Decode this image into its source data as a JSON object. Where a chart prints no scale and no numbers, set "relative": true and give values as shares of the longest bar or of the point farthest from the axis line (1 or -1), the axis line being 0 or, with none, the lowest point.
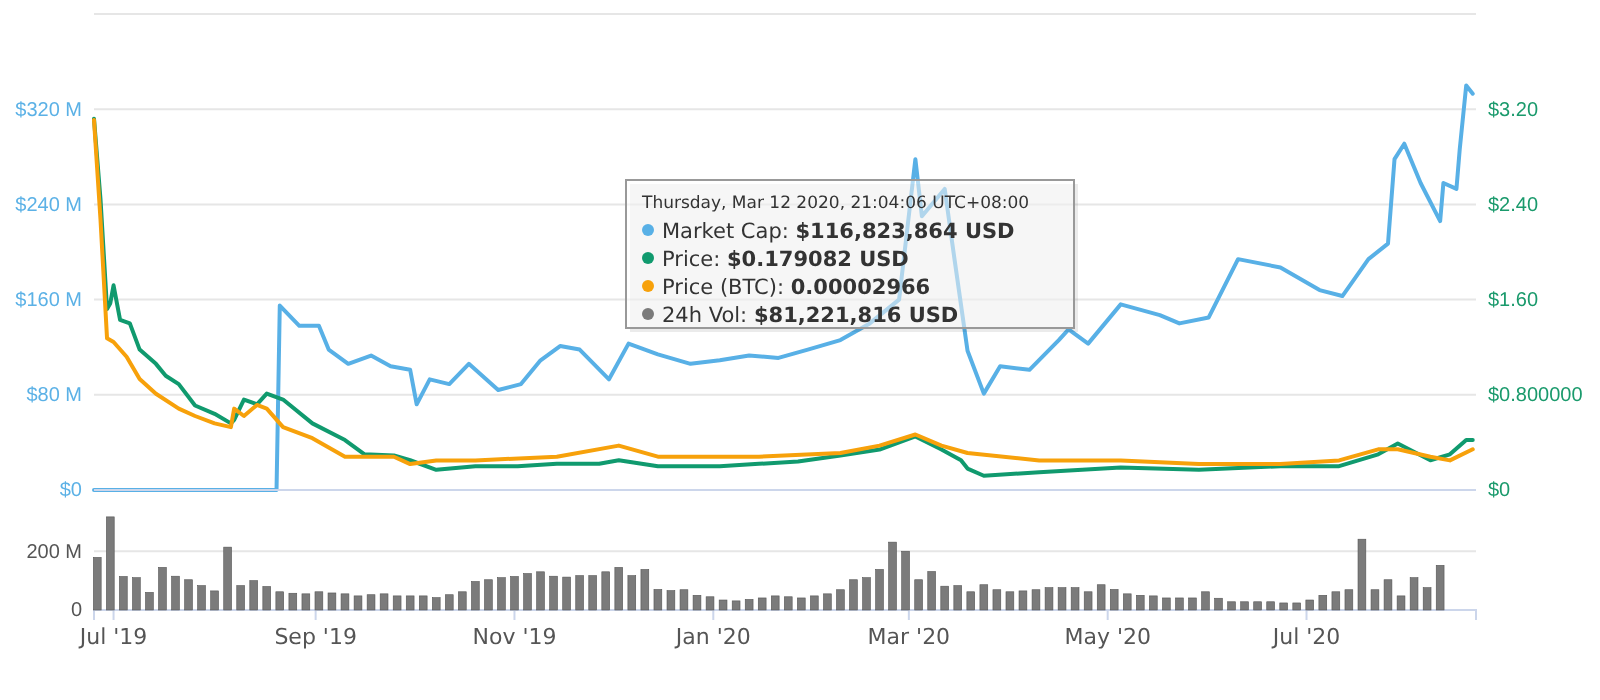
{
  "chart_data": [
    {
      "type": "line",
      "xlim": [
        "2019-06-25",
        "2020-08-22"
      ],
      "ylim": [
        0,
        400
      ],
      "yticks": [
        {
          "value": 0,
          "label": "$0"
        },
        {
          "value": 80,
          "label": "$80 M"
        },
        {
          "value": 160,
          "label": "$160 M"
        },
        {
          "value": 240,
          "label": "$240 M"
        },
        {
          "value": 320,
          "label": "$320 M"
        },
        {
          "value": 400,
          "label": null
        }
      ],
      "y2lim": [
        0,
        4
      ],
      "y2ticks": [
        {
          "value": 0,
          "label": "$0"
        },
        {
          "value": 0.8,
          "label": "$0.800000"
        },
        {
          "value": 1.6,
          "label": "$1.60"
        },
        {
          "value": 2.4,
          "label": "$2.40"
        },
        {
          "value": 3.2,
          "label": "$3.20"
        }
      ],
      "tick_labels": "y",
      "grid": "y",
      "legend": "top",
      "marker": "none",
      "line_style": "solid",
      "annotations": [
        "Thursday, Mar 12 2020, 21:04:06 UTC+08:00",
        "$116,823,864 USD",
        "$0.179082 USD"
      ],
      "series": [
        {
          "name": "Market Cap:",
          "color": "#58b0e6",
          "axis": "y",
          "x": [
            "2019-06-25",
            "2019-08-20",
            "2019-08-21",
            "2019-08-27",
            "2019-09-02",
            "2019-09-05",
            "2019-09-11",
            "2019-09-18",
            "2019-09-24",
            "2019-09-30",
            "2019-10-02",
            "2019-10-06",
            "2019-10-12",
            "2019-10-18",
            "2019-10-27",
            "2019-11-03",
            "2019-11-09",
            "2019-11-15",
            "2019-11-21",
            "2019-11-30",
            "2019-12-06",
            "2019-12-15",
            "2019-12-25",
            "2020-01-03",
            "2020-01-12",
            "2020-01-21",
            "2020-01-30",
            "2020-02-09",
            "2020-02-18",
            "2020-02-27",
            "2020-03-03",
            "2020-03-05",
            "2020-03-12",
            "2020-03-15",
            "2020-03-19",
            "2020-03-24",
            "2020-03-29",
            "2020-04-07",
            "2020-04-16",
            "2020-04-19",
            "2020-04-25",
            "2020-05-05",
            "2020-05-17",
            "2020-05-23",
            "2020-06-01",
            "2020-06-10",
            "2020-06-23",
            "2020-07-05",
            "2020-07-12",
            "2020-07-20",
            "2020-07-26",
            "2020-07-28",
            "2020-07-31",
            "2020-08-05",
            "2020-08-11",
            "2020-08-12",
            "2020-08-16",
            "2020-08-17",
            "2020-08-19",
            "2020-08-21"
          ],
          "values": [
            0,
            0,
            155,
            138,
            138,
            118,
            106,
            113,
            104,
            101,
            72,
            93,
            89,
            106,
            84,
            89,
            109,
            121,
            118,
            93,
            123,
            114,
            106,
            109,
            113,
            111,
            118,
            126,
            140,
            160,
            278,
            230,
            253,
            194,
            117,
            81,
            104,
            101,
            126,
            135,
            123,
            156,
            147,
            140,
            145,
            194,
            187,
            168,
            163,
            194,
            207,
            278,
            291,
            258,
            226,
            258,
            253,
            286,
            340,
            333
          ]
        },
        {
          "name": "Price:",
          "color": "#109a6e",
          "axis": "y2",
          "x": [
            "2019-06-25",
            "2019-06-27",
            "2019-06-29",
            "2019-06-30",
            "2019-07-01",
            "2019-07-03",
            "2019-07-06",
            "2019-07-09",
            "2019-07-14",
            "2019-07-17",
            "2019-07-21",
            "2019-07-26",
            "2019-08-01",
            "2019-08-06",
            "2019-08-07",
            "2019-08-10",
            "2019-08-14",
            "2019-08-17",
            "2019-08-22",
            "2019-08-31",
            "2019-09-10",
            "2019-09-16",
            "2019-09-25",
            "2019-09-30",
            "2019-10-08",
            "2019-10-20",
            "2019-11-02",
            "2019-11-14",
            "2019-11-27",
            "2019-12-03",
            "2019-12-15",
            "2020-01-03",
            "2020-01-15",
            "2020-01-27",
            "2020-02-09",
            "2020-02-21",
            "2020-03-03",
            "2020-03-11",
            "2020-03-17",
            "2020-03-19",
            "2020-03-24",
            "2020-04-10",
            "2020-05-05",
            "2020-05-29",
            "2020-06-23",
            "2020-07-11",
            "2020-07-23",
            "2020-07-29",
            "2020-08-08",
            "2020-08-14",
            "2020-08-19",
            "2020-08-21"
          ],
          "values": [
            3.12,
            2.44,
            1.52,
            1.57,
            1.72,
            1.43,
            1.4,
            1.18,
            1.06,
            0.96,
            0.89,
            0.71,
            0.64,
            0.56,
            0.59,
            0.76,
            0.72,
            0.81,
            0.76,
            0.56,
            0.42,
            0.3,
            0.29,
            0.25,
            0.17,
            0.2,
            0.2,
            0.22,
            0.22,
            0.25,
            0.2,
            0.2,
            0.22,
            0.24,
            0.29,
            0.34,
            0.45,
            0.34,
            0.25,
            0.18,
            0.12,
            0.15,
            0.19,
            0.17,
            0.2,
            0.2,
            0.3,
            0.39,
            0.25,
            0.3,
            0.42,
            0.42
          ]
        }
      ]
    },
    {
      "type": "line",
      "relative": true,
      "xlim": [
        "2019-06-25",
        "2020-08-22"
      ],
      "tick_labels": false,
      "line_style": "solid",
      "annotations": [
        "0.00002966"
      ],
      "series": [
        {
          "name": "Price (BTC):",
          "color": "#f7a10b",
          "x": [
            "2019-06-25",
            "2019-06-27",
            "2019-06-29",
            "2019-07-01",
            "2019-07-05",
            "2019-07-09",
            "2019-07-14",
            "2019-07-21",
            "2019-07-26",
            "2019-08-01",
            "2019-08-06",
            "2019-08-07",
            "2019-08-10",
            "2019-08-14",
            "2019-08-17",
            "2019-08-22",
            "2019-08-31",
            "2019-09-10",
            "2019-09-25",
            "2019-09-30",
            "2019-10-08",
            "2019-10-20",
            "2019-11-14",
            "2019-12-03",
            "2019-12-15",
            "2020-01-15",
            "2020-02-09",
            "2020-02-21",
            "2020-03-03",
            "2020-03-11",
            "2020-03-19",
            "2020-04-10",
            "2020-05-05",
            "2020-05-29",
            "2020-06-23",
            "2020-07-11",
            "2020-07-23",
            "2020-07-29",
            "2020-08-08",
            "2020-08-14",
            "2020-08-21"
          ],
          "values": [
            1,
            0.73,
            0.41,
            0.4,
            0.36,
            0.3,
            0.26,
            0.22,
            0.2,
            0.18,
            0.17,
            0.22,
            0.2,
            0.23,
            0.22,
            0.17,
            0.14,
            0.09,
            0.09,
            0.07,
            0.08,
            0.08,
            0.09,
            0.12,
            0.09,
            0.09,
            0.1,
            0.12,
            0.15,
            0.12,
            0.1,
            0.08,
            0.08,
            0.07,
            0.07,
            0.08,
            0.11,
            0.11,
            0.09,
            0.08,
            0.11
          ]
        }
      ]
    },
    {
      "type": "bar",
      "xlim": [
        "2019-06-25",
        "2020-08-22"
      ],
      "xticks": [
        {
          "value": "2019-07-01",
          "label": "Jul '19"
        },
        {
          "value": "2019-09-01",
          "label": "Sep '19"
        },
        {
          "value": "2019-11-01",
          "label": "Nov '19"
        },
        {
          "value": "2020-01-01",
          "label": "Jan '20"
        },
        {
          "value": "2020-03-01",
          "label": "Mar '20"
        },
        {
          "value": "2020-05-01",
          "label": "May '20"
        },
        {
          "value": "2020-07-01",
          "label": "Jul '20"
        }
      ],
      "ylim": [
        0,
        320
      ],
      "yticks": [
        0,
        {
          "value": 200,
          "label": "200 M"
        }
      ],
      "grid": "y",
      "annotations": [
        "$81,221,816 USD"
      ],
      "series": [
        {
          "name": "24h Vol:",
          "color": "#7b7b7b",
          "x": [
            "2019-06-26",
            "2019-06-30",
            "2019-07-04",
            "2019-07-08",
            "2019-07-12",
            "2019-07-16",
            "2019-07-20",
            "2019-07-24",
            "2019-07-28",
            "2019-08-01",
            "2019-08-05",
            "2019-08-09",
            "2019-08-13",
            "2019-08-17",
            "2019-08-21",
            "2019-08-25",
            "2019-08-29",
            "2019-09-02",
            "2019-09-06",
            "2019-09-10",
            "2019-09-14",
            "2019-09-18",
            "2019-09-22",
            "2019-09-26",
            "2019-09-30",
            "2019-10-04",
            "2019-10-08",
            "2019-10-12",
            "2019-10-16",
            "2019-10-20",
            "2019-10-24",
            "2019-10-28",
            "2019-11-01",
            "2019-11-05",
            "2019-11-09",
            "2019-11-13",
            "2019-11-17",
            "2019-11-21",
            "2019-11-25",
            "2019-11-29",
            "2019-12-03",
            "2019-12-07",
            "2019-12-11",
            "2019-12-15",
            "2019-12-19",
            "2019-12-23",
            "2019-12-27",
            "2019-12-31",
            "2020-01-04",
            "2020-01-08",
            "2020-01-12",
            "2020-01-16",
            "2020-01-20",
            "2020-01-24",
            "2020-01-28",
            "2020-02-01",
            "2020-02-05",
            "2020-02-09",
            "2020-02-13",
            "2020-02-17",
            "2020-02-21",
            "2020-02-25",
            "2020-02-29",
            "2020-03-04",
            "2020-03-08",
            "2020-03-12",
            "2020-03-16",
            "2020-03-20",
            "2020-03-24",
            "2020-03-28",
            "2020-04-01",
            "2020-04-05",
            "2020-04-09",
            "2020-04-13",
            "2020-04-17",
            "2020-04-21",
            "2020-04-25",
            "2020-04-29",
            "2020-05-03",
            "2020-05-07",
            "2020-05-11",
            "2020-05-15",
            "2020-05-19",
            "2020-05-23",
            "2020-05-27",
            "2020-05-31",
            "2020-06-04",
            "2020-06-08",
            "2020-06-12",
            "2020-06-16",
            "2020-06-20",
            "2020-06-24",
            "2020-06-28",
            "2020-07-02",
            "2020-07-06",
            "2020-07-10",
            "2020-07-14",
            "2020-07-18",
            "2020-07-22",
            "2020-07-26",
            "2020-07-30",
            "2020-08-03",
            "2020-08-07",
            "2020-08-11"
          ],
          "values": [
            179,
            317,
            114,
            110,
            60,
            145,
            115,
            103,
            83,
            65,
            214,
            83,
            100,
            80,
            62,
            57,
            55,
            62,
            58,
            55,
            48,
            52,
            55,
            48,
            48,
            48,
            42,
            52,
            62,
            97,
            103,
            110,
            114,
            124,
            130,
            115,
            112,
            117,
            117,
            130,
            145,
            117,
            138,
            70,
            66,
            69,
            50,
            45,
            34,
            31,
            36,
            41,
            48,
            45,
            41,
            48,
            55,
            69,
            103,
            110,
            138,
            231,
            200,
            103,
            131,
            81,
            83,
            62,
            86,
            69,
            62,
            65,
            69,
            76,
            76,
            76,
            62,
            86,
            70,
            55,
            50,
            48,
            41,
            41,
            41,
            62,
            40,
            28,
            28,
            28,
            28,
            24,
            24,
            34,
            50,
            62,
            69,
            241,
            69,
            103,
            48,
            110,
            76,
            152
          ]
        }
      ]
    }
  ]
}
